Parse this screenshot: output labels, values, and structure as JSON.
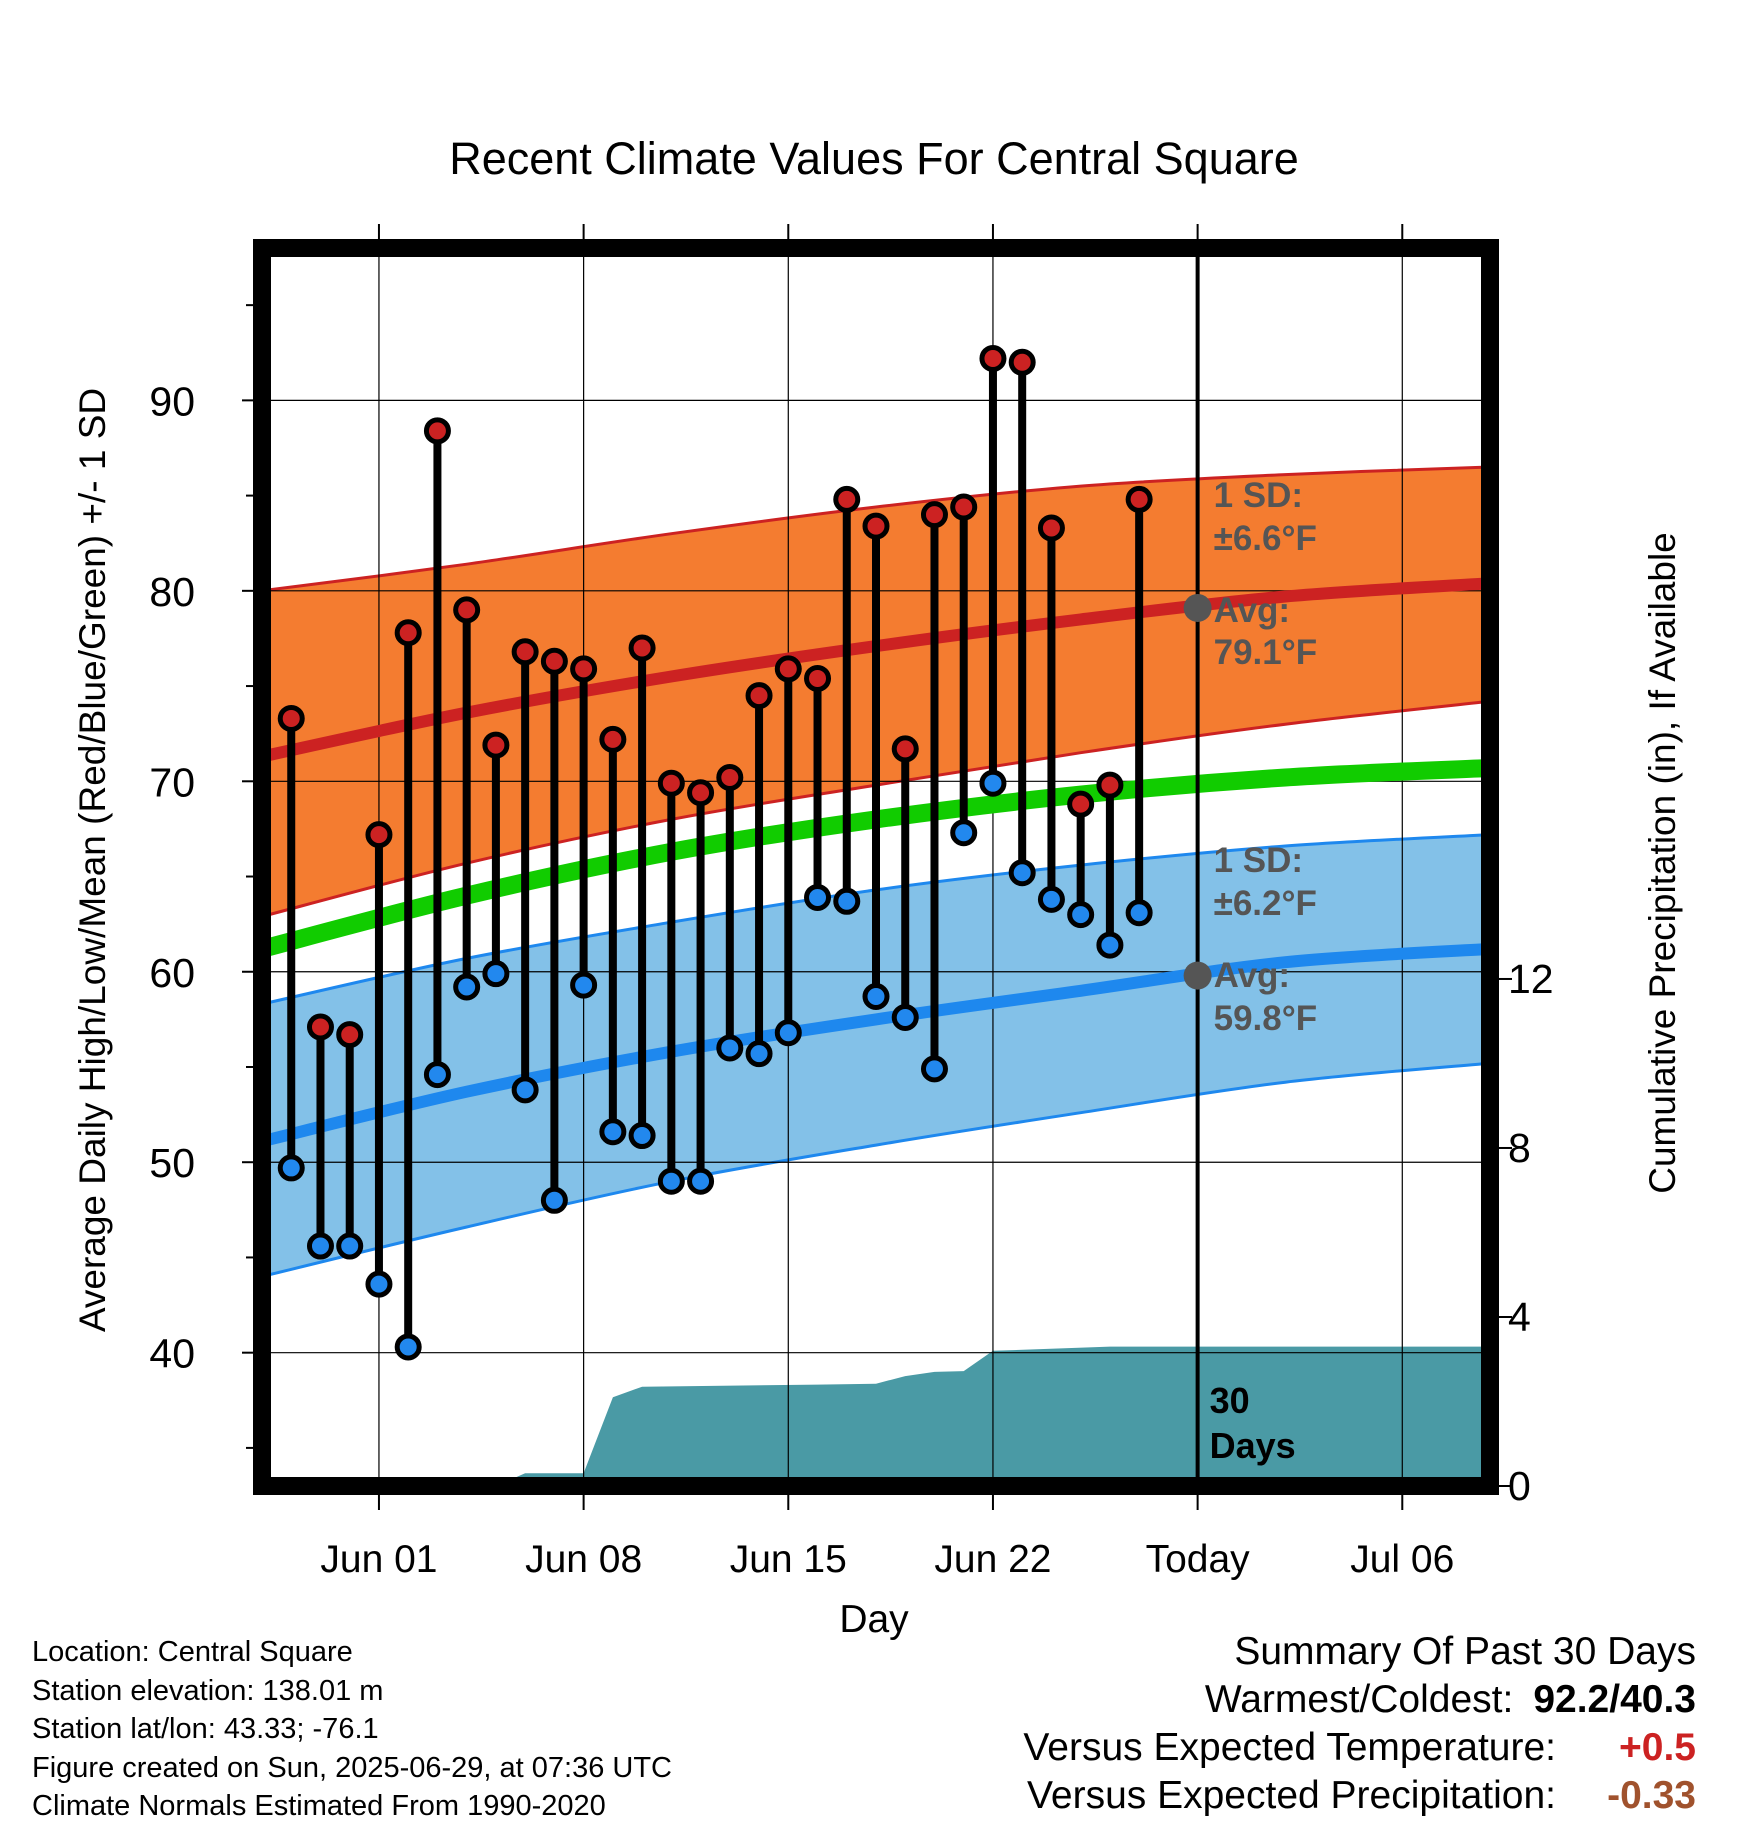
{
  "chart_data": {
    "type": "line",
    "title": "Recent Climate Values For Central Square",
    "xlabel": "Day",
    "ylabel": "Average Daily High/Low/Mean (Red/Blue/Green) +/- 1 SD",
    "y2label": "Cumulative Precipitation (in), If Available",
    "x_ticks": [
      {
        "date": "2025-06-01",
        "label": "Jun 01"
      },
      {
        "date": "2025-06-08",
        "label": "Jun 08"
      },
      {
        "date": "2025-06-15",
        "label": "Jun 15"
      },
      {
        "date": "2025-06-22",
        "label": "Jun 22"
      },
      {
        "date": "2025-06-29",
        "label": "Today"
      },
      {
        "date": "2025-07-06",
        "label": "Jul 06"
      }
    ],
    "xlim": [
      "2025-05-28",
      "2025-07-09"
    ],
    "ylim": [
      33,
      98
    ],
    "y_ticks": [
      40,
      50,
      60,
      70,
      80,
      90
    ],
    "y2lim": [
      0,
      29.3
    ],
    "y2_ticks": [
      0,
      4,
      8,
      12
    ],
    "grid": true,
    "today": "2025-06-29",
    "today_annotation": [
      "30",
      "Days"
    ],
    "normal_dates": [
      "2025-05-28",
      "2025-06-04",
      "2025-06-11",
      "2025-06-18",
      "2025-06-25",
      "2025-07-02",
      "2025-07-09"
    ],
    "normal_high": [
      71.3,
      73.6,
      75.5,
      77.1,
      78.5,
      79.7,
      80.4
    ],
    "normal_high_upper": [
      80.0,
      81.4,
      83.0,
      84.4,
      85.5,
      86.1,
      86.5
    ],
    "normal_high_lower": [
      62.9,
      65.7,
      68.0,
      69.8,
      71.5,
      73.0,
      74.2
    ],
    "normal_mean": [
      61.2,
      64.0,
      66.3,
      68.0,
      69.3,
      70.2,
      70.7
    ],
    "normal_low": [
      51.1,
      53.7,
      55.8,
      57.5,
      59.0,
      60.5,
      61.2
    ],
    "normal_low_upper": [
      58.3,
      60.7,
      62.6,
      64.3,
      65.6,
      66.6,
      67.2
    ],
    "normal_low_lower": [
      44.0,
      46.6,
      49.0,
      50.9,
      52.6,
      54.2,
      55.2
    ],
    "series": [
      {
        "name": "High",
        "color": "#cc2222",
        "dates": [
          "2025-05-29",
          "2025-05-30",
          "2025-05-31",
          "2025-06-01",
          "2025-06-02",
          "2025-06-03",
          "2025-06-04",
          "2025-06-05",
          "2025-06-06",
          "2025-06-07",
          "2025-06-08",
          "2025-06-09",
          "2025-06-10",
          "2025-06-11",
          "2025-06-12",
          "2025-06-13",
          "2025-06-14",
          "2025-06-15",
          "2025-06-16",
          "2025-06-17",
          "2025-06-18",
          "2025-06-19",
          "2025-06-20",
          "2025-06-21",
          "2025-06-22",
          "2025-06-23",
          "2025-06-24",
          "2025-06-25",
          "2025-06-26",
          "2025-06-27",
          "2025-06-28"
        ],
        "values": [
          73.3,
          57.1,
          56.7,
          67.2,
          77.8,
          88.4,
          79.0,
          71.9,
          76.8,
          76.3,
          75.9,
          72.2,
          77.0,
          69.9,
          69.4,
          70.2,
          74.5,
          75.9,
          75.4,
          84.8,
          83.4,
          71.7,
          84.0,
          84.4,
          92.2,
          92.0,
          83.3,
          68.8,
          69.8,
          84.8,
          null
        ]
      },
      {
        "name": "Low",
        "color": "#2288ee",
        "dates": [
          "2025-05-29",
          "2025-05-30",
          "2025-05-31",
          "2025-06-01",
          "2025-06-02",
          "2025-06-03",
          "2025-06-04",
          "2025-06-05",
          "2025-06-06",
          "2025-06-07",
          "2025-06-08",
          "2025-06-09",
          "2025-06-10",
          "2025-06-11",
          "2025-06-12",
          "2025-06-13",
          "2025-06-14",
          "2025-06-15",
          "2025-06-16",
          "2025-06-17",
          "2025-06-18",
          "2025-06-19",
          "2025-06-20",
          "2025-06-21",
          "2025-06-22",
          "2025-06-23",
          "2025-06-24",
          "2025-06-25",
          "2025-06-26",
          "2025-06-27",
          "2025-06-28"
        ],
        "values": [
          49.7,
          45.6,
          45.6,
          43.6,
          40.3,
          54.6,
          59.2,
          59.9,
          53.8,
          48.0,
          59.3,
          51.6,
          51.4,
          49.0,
          49.0,
          56.0,
          55.7,
          56.8,
          63.9,
          63.7,
          58.7,
          57.6,
          54.9,
          67.3,
          69.9,
          65.2,
          63.8,
          63.0,
          61.4,
          63.1,
          null
        ]
      }
    ],
    "precip_dates": [
      "2025-06-02",
      "2025-06-03",
      "2025-06-03",
      "2025-06-05",
      "2025-06-06",
      "2025-06-08",
      "2025-06-09",
      "2025-06-10",
      "2025-06-16",
      "2025-06-18",
      "2025-06-19",
      "2025-06-20",
      "2025-06-21",
      "2025-06-22",
      "2025-06-26",
      "2025-07-09"
    ],
    "precip_values": [
      0,
      0,
      0,
      0,
      0.3,
      0.3,
      2.1,
      2.35,
      2.4,
      2.42,
      2.6,
      2.7,
      2.72,
      3.2,
      3.3,
      3.3
    ],
    "annotations": {
      "high_sd": "1 SD:",
      "high_sd_value": "±6.6°F",
      "high_avg": "Avg:",
      "high_avg_value": "79.1°F",
      "low_sd": "1 SD:",
      "low_sd_value": "±6.2°F",
      "low_avg": "Avg:",
      "low_avg_value": "59.8°F"
    }
  },
  "station_info": {
    "location": "Location: Central Square",
    "elevation": "Station elevation: 138.01 m",
    "latlon": "Station lat/lon: 43.33; -76.1",
    "created": "Figure created on Sun, 2025-06-29, at 07:36 UTC",
    "normals": "Climate Normals Estimated From 1990-2020"
  },
  "summary": {
    "title": "Summary Of Past 30 Days",
    "warmest_coldest_label": "Warmest/Coldest:",
    "warmest_coldest_value": "92.2/40.3",
    "temp_label": "Versus Expected Temperature:",
    "temp_value": "+0.5",
    "temp_color": "#cc2222",
    "precip_label": "Versus Expected Precipitation:",
    "precip_value": "-0.33",
    "precip_color": "#a0522d"
  }
}
